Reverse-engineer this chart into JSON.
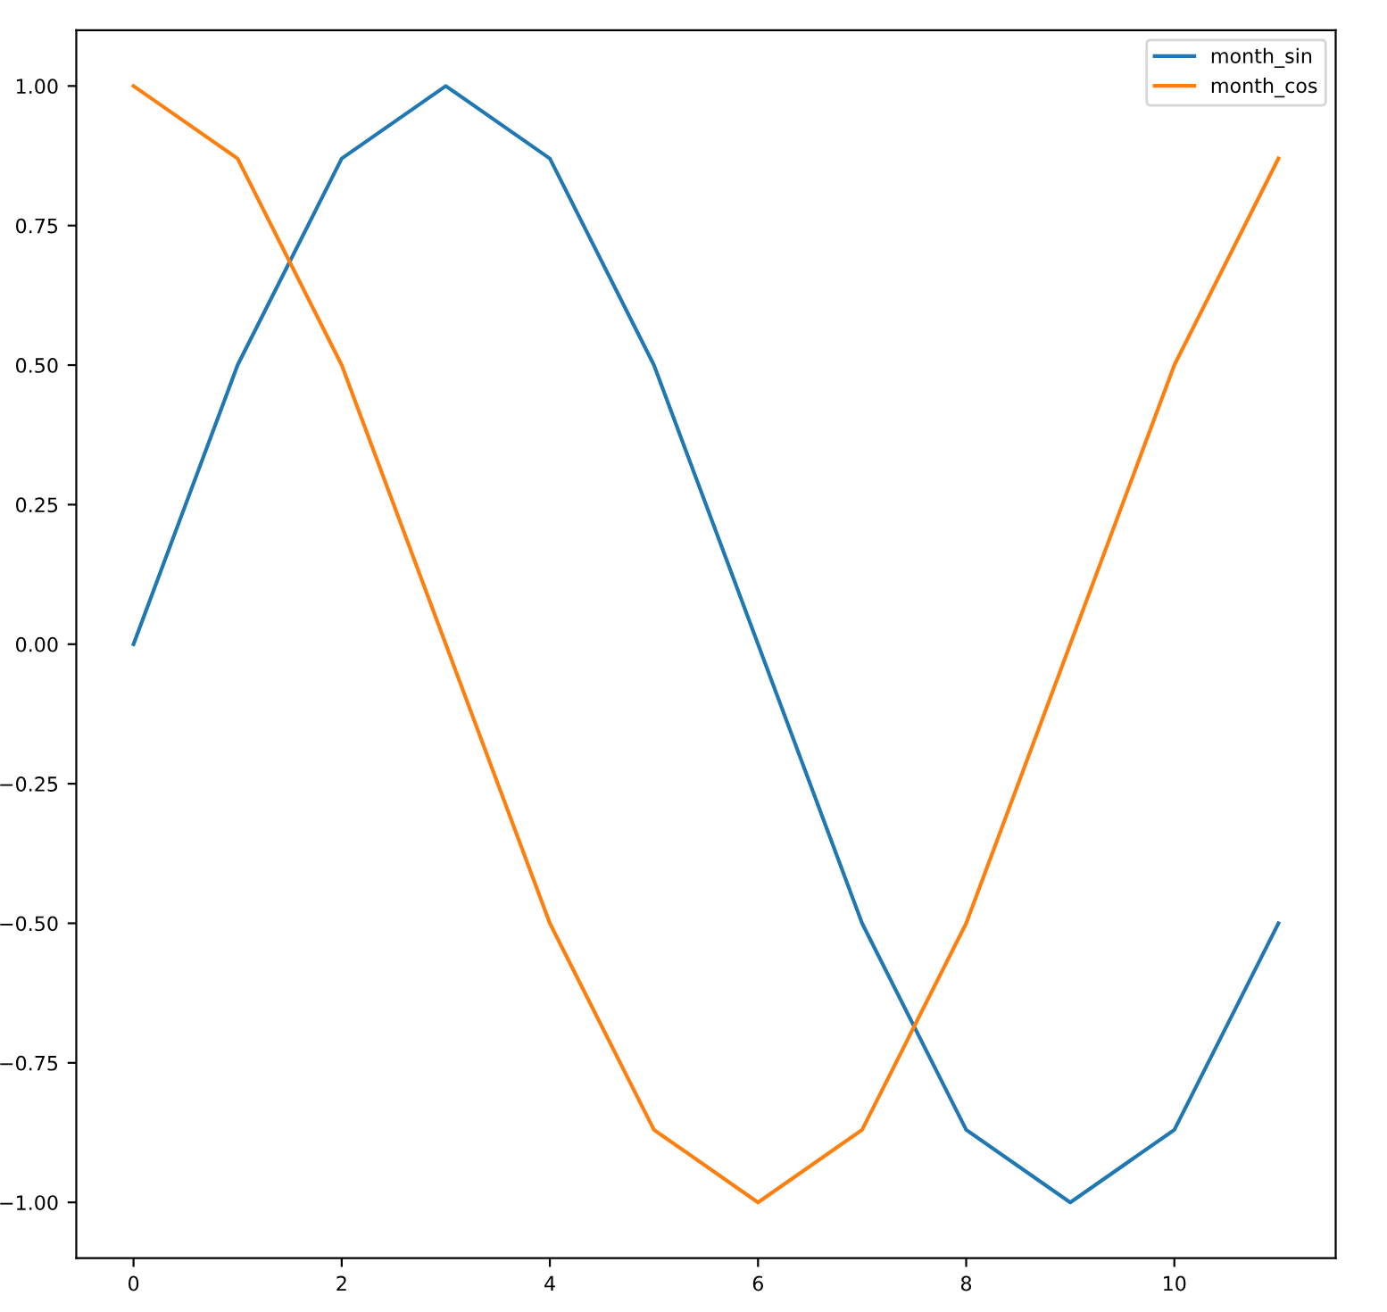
{
  "chart_data": {
    "type": "line",
    "x": [
      0,
      1,
      2,
      3,
      4,
      5,
      6,
      7,
      8,
      9,
      10,
      11
    ],
    "series": [
      {
        "name": "month_sin",
        "color": "#1f77b4",
        "values": [
          0,
          0.5,
          0.87,
          1,
          0.87,
          0.5,
          0,
          -0.5,
          -0.87,
          -1,
          -0.87,
          -0.5
        ]
      },
      {
        "name": "month_cos",
        "color": "#ff7f0e",
        "values": [
          1,
          0.87,
          0.5,
          0,
          -0.5,
          -0.87,
          -1,
          -0.87,
          -0.5,
          0,
          0.5,
          0.87
        ]
      }
    ],
    "xlim": [
      -0.55,
      11.55
    ],
    "xticks": [
      0,
      2,
      4,
      6,
      8,
      10
    ],
    "ylim": [
      -1.1,
      1.1
    ],
    "yticks": [
      {
        "value": -1,
        "label": "−1.00"
      },
      {
        "value": -0.75,
        "label": "−0.75"
      },
      {
        "value": -0.5,
        "label": "−0.50"
      },
      {
        "value": -0.25,
        "label": "−0.25"
      },
      {
        "value": 0,
        "label": "0.00"
      },
      {
        "value": 0.25,
        "label": "0.25"
      },
      {
        "value": 0.5,
        "label": "0.50"
      },
      {
        "value": 0.75,
        "label": "0.75"
      },
      {
        "value": 1,
        "label": "1.00"
      }
    ],
    "legend": "top right",
    "grid": false,
    "marker": "none",
    "line_style": "solid"
  }
}
